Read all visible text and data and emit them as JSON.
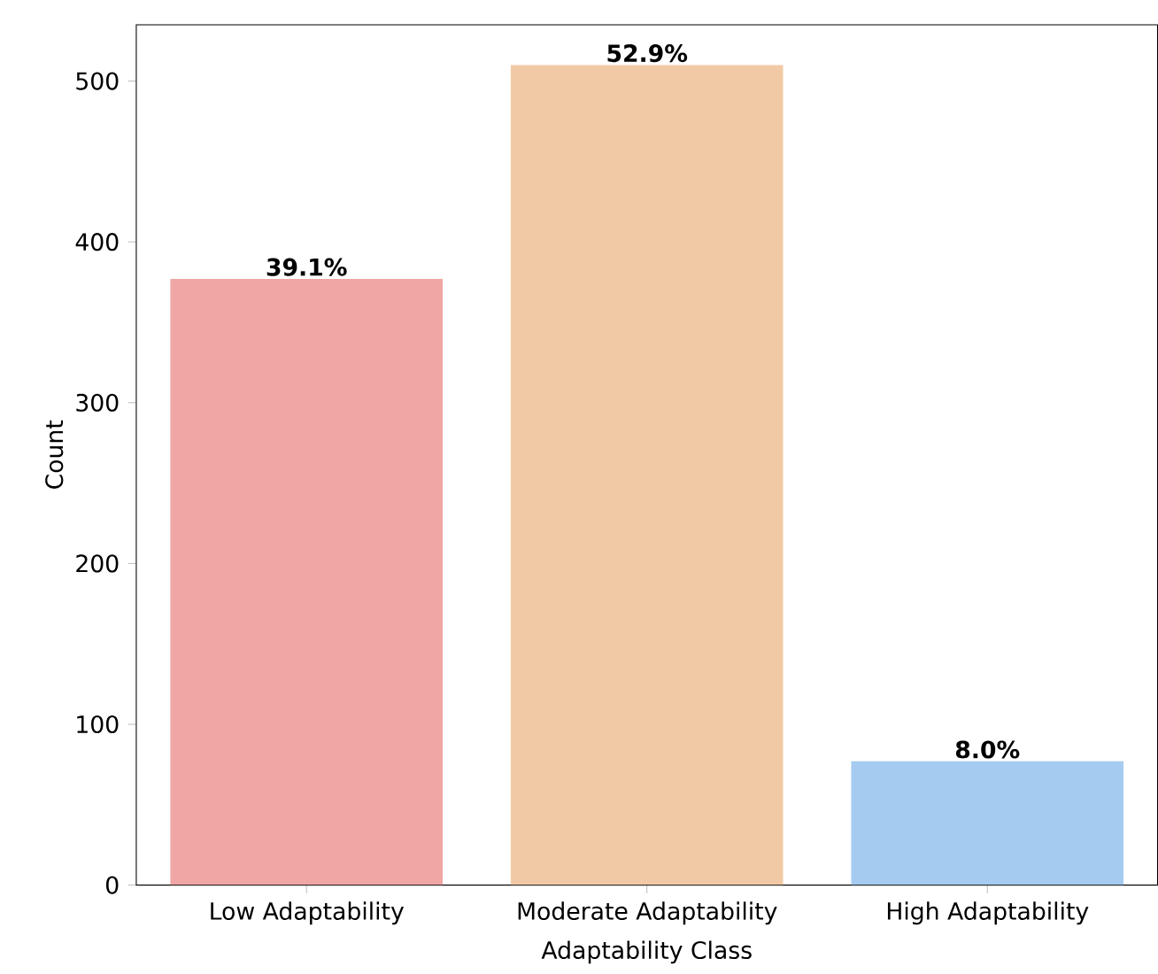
{
  "chart_data": {
    "type": "bar",
    "xlabel": "Adaptability Class",
    "ylabel": "Count",
    "categories": [
      "Low Adaptability",
      "Moderate Adaptability",
      "High Adaptability"
    ],
    "values": [
      377,
      510,
      77
    ],
    "colors": [
      "#f0a6a5",
      "#f1caa5",
      "#a5cbf1"
    ],
    "annotations": [
      {
        "text": "39.1%",
        "x": "Low Adaptability",
        "y": 377
      },
      {
        "text": "52.9%",
        "x": "Moderate Adaptability",
        "y": 510
      },
      {
        "text": "8.0%",
        "x": "High Adaptability",
        "y": 77
      }
    ],
    "ylim": [
      0,
      535
    ],
    "yticks": [
      0,
      100,
      200,
      300,
      400,
      500
    ]
  }
}
